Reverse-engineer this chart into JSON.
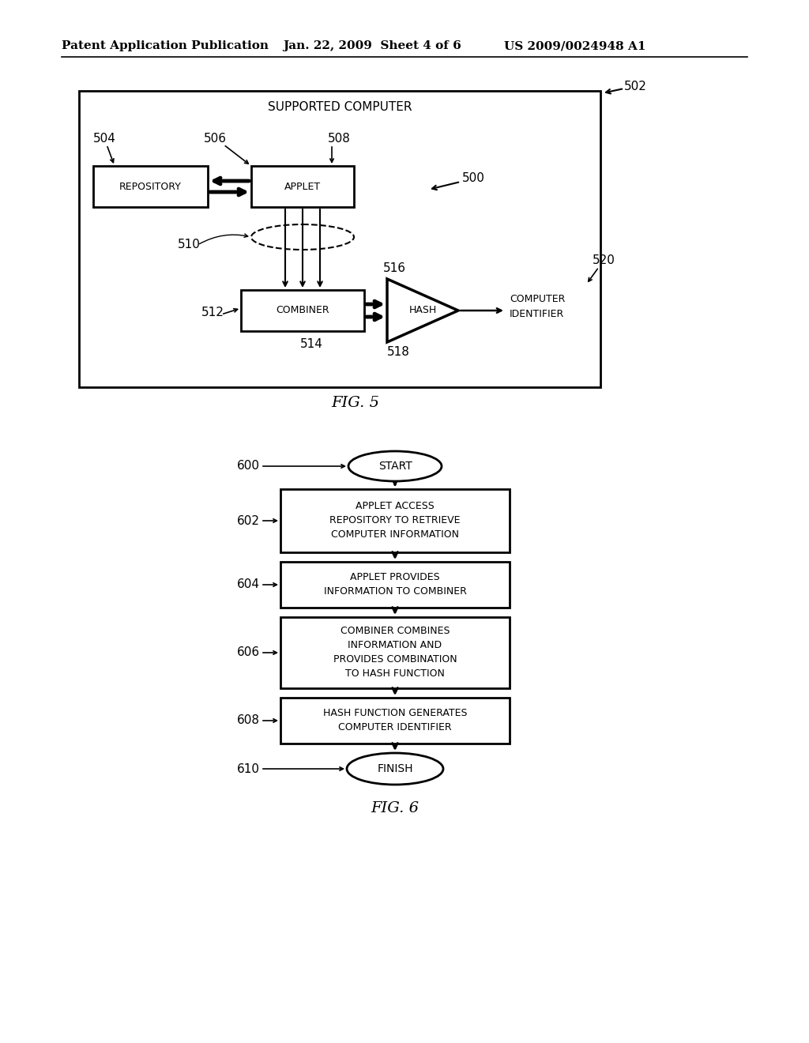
{
  "background_color": "#ffffff",
  "header_text": "Patent Application Publication",
  "header_date": "Jan. 22, 2009  Sheet 4 of 6",
  "header_patent": "US 2009/0024948 A1",
  "fig5_caption": "FIG. 5",
  "fig6_caption": "FIG. 6",
  "fig5_outer_box_label": "SUPPORTED COMPUTER",
  "fig5_label_502": "502",
  "fig5_label_500": "500",
  "fig5_label_504": "504",
  "fig5_label_506": "506",
  "fig5_label_508": "508",
  "fig5_label_510": "510",
  "fig5_label_512": "512",
  "fig5_label_514": "514",
  "fig5_label_516": "516",
  "fig5_label_518": "518",
  "fig5_label_520": "520",
  "fig5_box_repository": "REPOSITORY",
  "fig5_box_applet": "APPLET",
  "fig5_box_combiner": "COMBINER",
  "fig5_box_hash": "HASH",
  "fig5_text_computer_id": "COMPUTER\nIDENTIFIER",
  "fig6_labels": [
    "600",
    "602",
    "604",
    "606",
    "608",
    "610"
  ],
  "fig6_start_text": "START",
  "fig6_finish_text": "FINISH",
  "fig6_box1_text": "APPLET ACCESS\nREPOSITORY TO RETRIEVE\nCOMPUTER INFORMATION",
  "fig6_box2_text": "APPLET PROVIDES\nINFORMATION TO COMBINER",
  "fig6_box3_text": "COMBINER COMBINES\nINFORMATION AND\nPROVIDES COMBINATION\nTO HASH FUNCTION",
  "fig6_box4_text": "HASH FUNCTION GENERATES\nCOMPUTER IDENTIFIER"
}
